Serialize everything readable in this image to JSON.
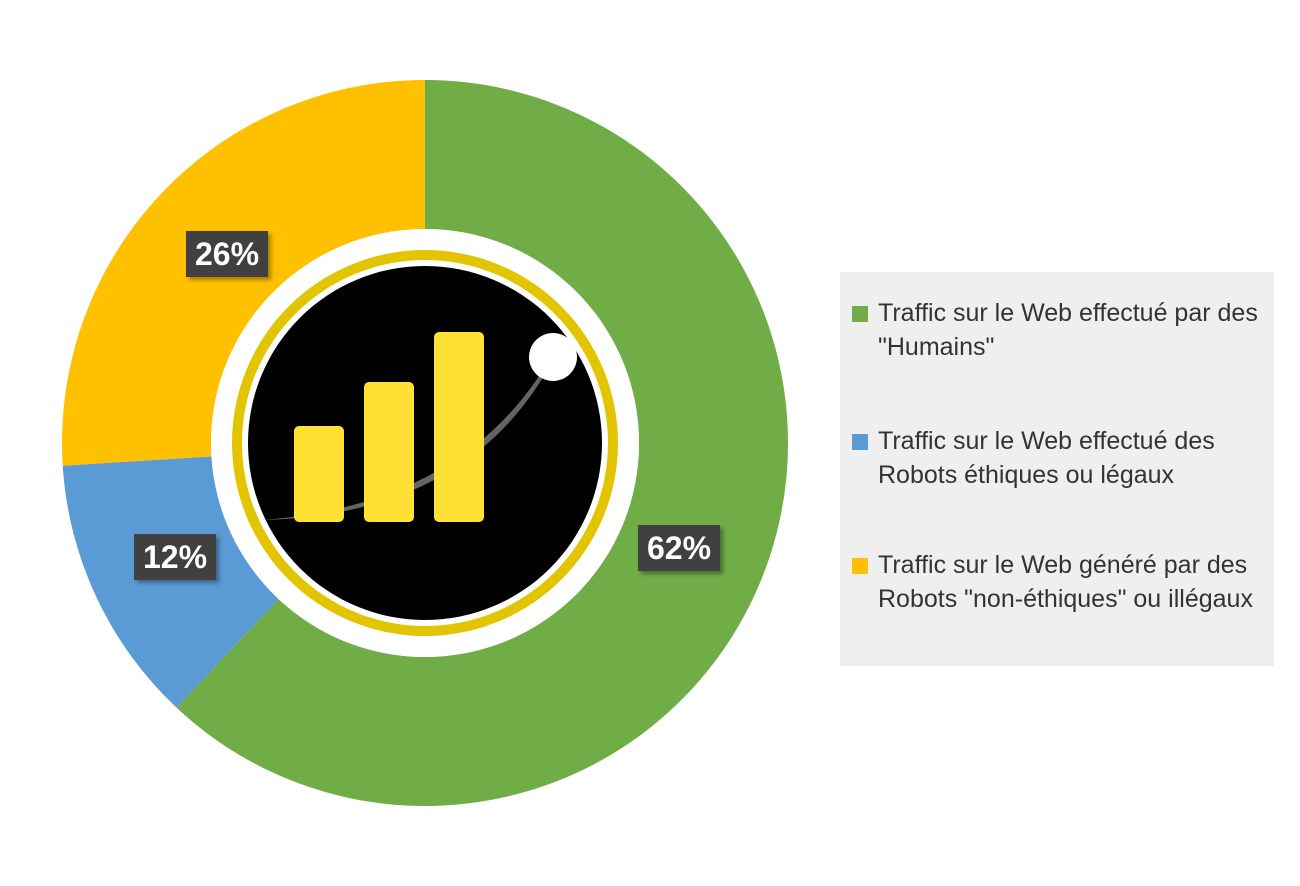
{
  "chart_data": {
    "type": "pie",
    "subtype": "donut",
    "title": "",
    "series": [
      {
        "name": "Traffic sur le Web effectué par des \"Humains\"",
        "value": 62,
        "label": "62%",
        "color": "#70AD47"
      },
      {
        "name": "Traffic sur le Web effectué des Robots éthiques ou légaux",
        "value": 12,
        "label": "12%",
        "color": "#5B9BD5"
      },
      {
        "name": "Traffic sur le Web généré par des Robots \"non-éthiques\" ou illégaux",
        "value": 26,
        "label": "26%",
        "color": "#FFC000"
      }
    ],
    "legend_position": "right",
    "center_icon": "bar-chart-icon"
  }
}
